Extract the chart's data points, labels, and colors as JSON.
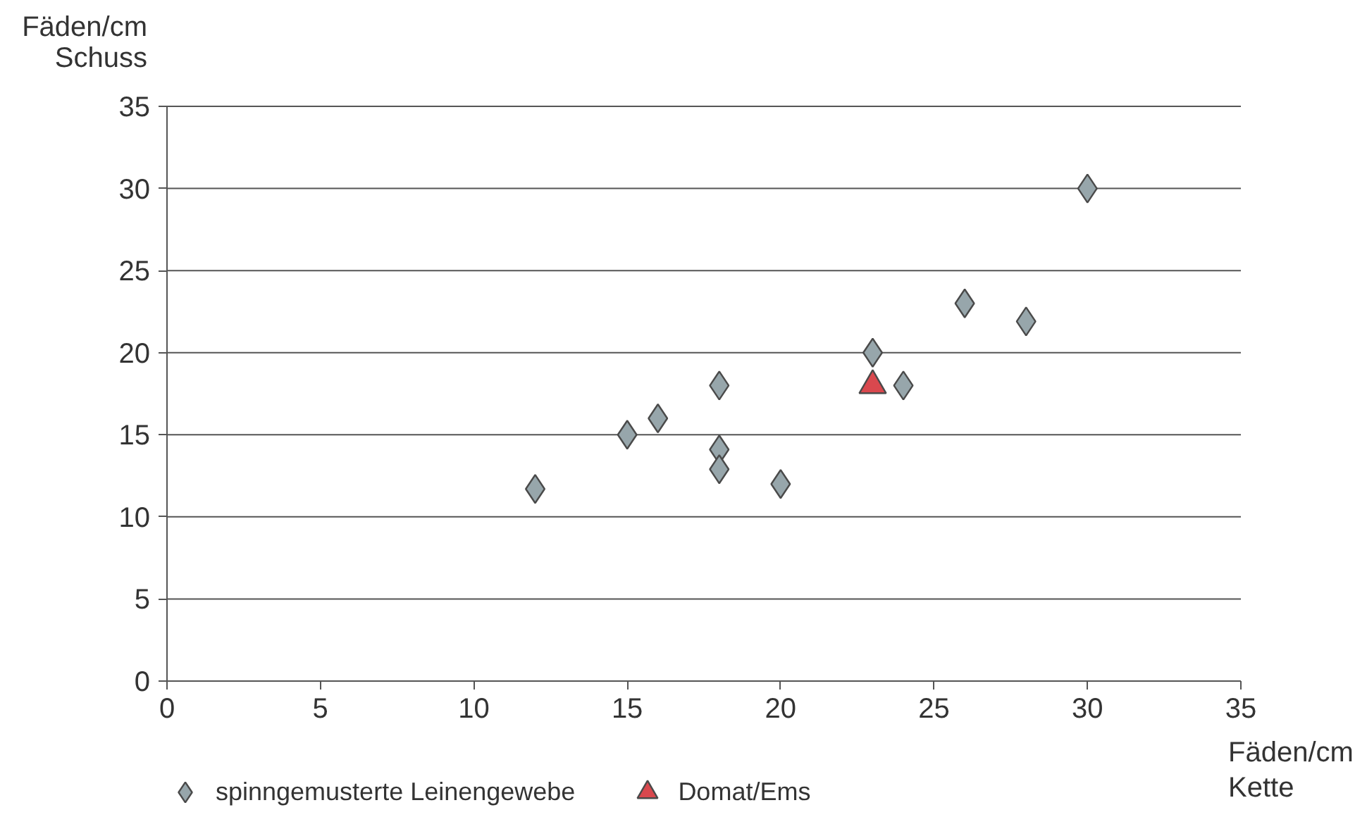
{
  "chart_data": {
    "type": "scatter",
    "xlabel": "Fäden/cm\nKette",
    "ylabel": "Fäden/cm\nSchuss",
    "xlim": [
      0,
      35
    ],
    "ylim": [
      0,
      35
    ],
    "xticks": [
      0,
      5,
      10,
      15,
      20,
      25,
      30,
      35
    ],
    "yticks": [
      0,
      5,
      10,
      15,
      20,
      25,
      30,
      35
    ],
    "grid": "y",
    "legend": "bottom left",
    "series": [
      {
        "name": "spinngemusterte Leinengewebe",
        "color": "#97a6ab",
        "marker": "diamond",
        "x": [
          12,
          15,
          16,
          18,
          18,
          18,
          20,
          23,
          24,
          26,
          28,
          30
        ],
        "values": [
          11.7,
          15,
          16,
          18,
          14.1,
          12.9,
          12,
          20,
          18,
          23,
          21.9,
          30
        ]
      },
      {
        "name": "Domat/Ems",
        "color": "#d9484e",
        "marker": "triangle",
        "x": [
          23
        ],
        "values": [
          18
        ]
      }
    ]
  }
}
